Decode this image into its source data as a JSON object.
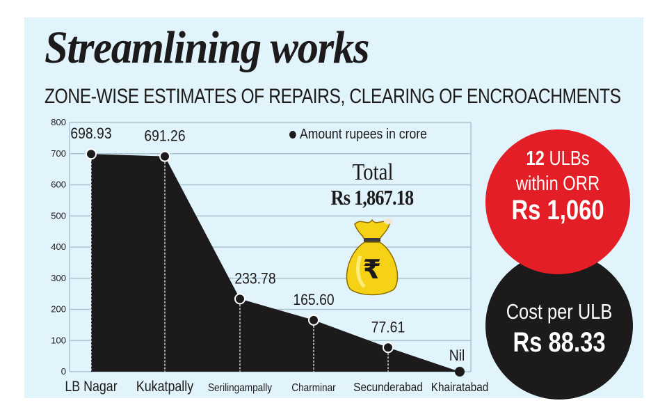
{
  "header": {
    "title": "Streamlining works",
    "subtitle": "ZONE-WISE ESTIMATES OF REPAIRS, CLEARING OF ENCROACHMENTS"
  },
  "legend": {
    "label": "Amount rupees in crore"
  },
  "total": {
    "label": "Total",
    "value": "Rs 1,867.18",
    "icon": "rupee-money-bag-icon"
  },
  "callouts": {
    "red_circle": {
      "count": "12",
      "count_suffix": " ULBs",
      "line2": "within ORR",
      "amount": "Rs 1,060",
      "color": "#e41e26"
    },
    "black_circle": {
      "line1": "Cost per ULB",
      "amount": "Rs 88.33",
      "color": "#1c1a1b"
    }
  },
  "chart_data": {
    "type": "area",
    "title": "Streamlining works",
    "subtitle": "ZONE-WISE ESTIMATES OF REPAIRS, CLEARING OF ENCROACHMENTS",
    "categories": [
      "LB Nagar",
      "Kukatpally",
      "Serilingampally",
      "Charminar",
      "Secunderabad",
      "Khairatabad"
    ],
    "values": [
      698.93,
      691.26,
      233.78,
      165.6,
      77.61,
      0
    ],
    "value_labels": [
      "698.93",
      "691.26",
      "233.78",
      "165.60",
      "77.61",
      "Nil"
    ],
    "series": [
      {
        "name": "Amount rupees in crore",
        "values": [
          698.93,
          691.26,
          233.78,
          165.6,
          77.61,
          0
        ]
      }
    ],
    "xlabel": "",
    "ylabel": "",
    "ylim": [
      0,
      800
    ],
    "yticks": [
      "0",
      "100",
      "200",
      "300",
      "400",
      "500",
      "600",
      "700",
      "800"
    ],
    "grid": true,
    "legend_position": "top-right",
    "fill_color": "#1c1a1b",
    "annotations": [
      "Total Rs 1,867.18",
      "12 ULBs within ORR Rs 1,060",
      "Cost per ULB Rs 88.33"
    ]
  }
}
